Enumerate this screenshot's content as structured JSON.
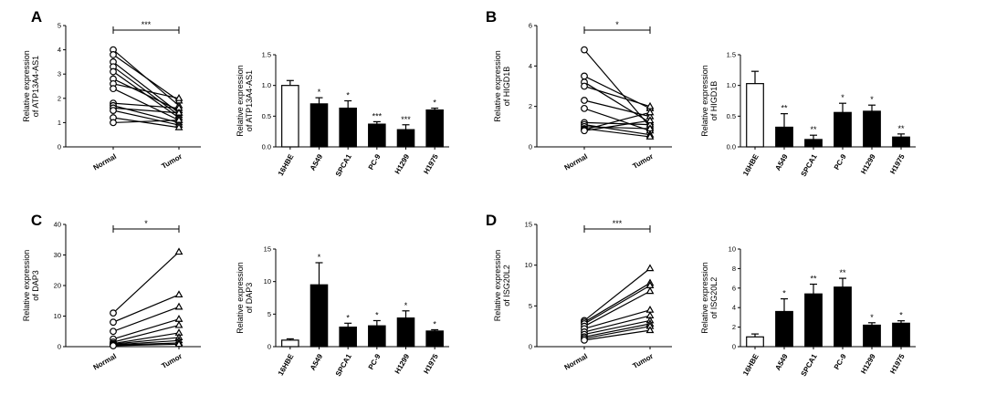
{
  "figure": {
    "panels": [
      {
        "letter": "A",
        "paired": {
          "title": "",
          "ylabel_line1": "Relative expression",
          "ylabel_line2": "of ATP13A4-AS1",
          "ylim": [
            0,
            5
          ],
          "yticks": [
            "0",
            "1",
            "2",
            "3",
            "4",
            "5"
          ],
          "groups": [
            "Normal",
            "Tumor"
          ],
          "significance": "***",
          "pairs": [
            [
              4.0,
              1.7
            ],
            [
              3.8,
              1.9
            ],
            [
              3.5,
              1.4
            ],
            [
              3.3,
              1.3
            ],
            [
              3.1,
              1.2
            ],
            [
              2.8,
              1.5
            ],
            [
              2.6,
              2.0
            ],
            [
              2.4,
              1.1
            ],
            [
              1.8,
              1.6
            ],
            [
              1.7,
              1.0
            ],
            [
              1.6,
              1.4
            ],
            [
              1.5,
              0.9
            ],
            [
              1.2,
              0.8
            ],
            [
              1.0,
              1.1
            ]
          ]
        },
        "bar": {
          "ylabel_line1": "Relative expression",
          "ylabel_line2": "of ATP13A4-AS1",
          "ylim": [
            0,
            1.5
          ],
          "yticks": [
            "0.0",
            "0.5",
            "1.0",
            "1.5"
          ],
          "categories": [
            "16HBE",
            "A549",
            "SPCA1",
            "PC-9",
            "H1299",
            "H1975"
          ],
          "values": [
            1.0,
            0.7,
            0.63,
            0.37,
            0.28,
            0.6
          ],
          "errors": [
            0.08,
            0.1,
            0.12,
            0.04,
            0.08,
            0.03
          ],
          "significance": [
            "",
            "*",
            "*",
            "***",
            "***",
            "*"
          ]
        }
      },
      {
        "letter": "B",
        "paired": {
          "ylabel_line1": "Relative expression",
          "ylabel_line2": "of HIGD1B",
          "ylim": [
            0,
            6
          ],
          "yticks": [
            "0",
            "2",
            "4",
            "6"
          ],
          "groups": [
            "Normal",
            "Tumor"
          ],
          "significance": "*",
          "pairs": [
            [
              4.8,
              1.0
            ],
            [
              3.5,
              1.9
            ],
            [
              3.2,
              1.2
            ],
            [
              3.0,
              2.0
            ],
            [
              2.3,
              1.5
            ],
            [
              1.9,
              0.8
            ],
            [
              1.2,
              1.1
            ],
            [
              1.1,
              0.6
            ],
            [
              1.0,
              0.9
            ],
            [
              0.9,
              0.5
            ],
            [
              0.85,
              1.7
            ],
            [
              0.8,
              1.3
            ]
          ]
        },
        "bar": {
          "ylabel_line1": "Relative expression",
          "ylabel_line2": "of HIGD1B",
          "ylim": [
            0,
            1.5
          ],
          "yticks": [
            "0.0",
            "0.5",
            "1.0",
            "1.5"
          ],
          "categories": [
            "16HBE",
            "A549",
            "SPCA1",
            "PC-9",
            "H1299",
            "H1975"
          ],
          "values": [
            1.03,
            0.32,
            0.12,
            0.56,
            0.58,
            0.16
          ],
          "errors": [
            0.2,
            0.22,
            0.07,
            0.15,
            0.1,
            0.05
          ],
          "significance": [
            "",
            "**",
            "**",
            "*",
            "*",
            "**"
          ]
        }
      },
      {
        "letter": "C",
        "paired": {
          "ylabel_line1": "Relative expression",
          "ylabel_line2": "of DAP3",
          "ylim": [
            0,
            40
          ],
          "yticks": [
            "0",
            "10",
            "20",
            "30",
            "40"
          ],
          "groups": [
            "Normal",
            "Tumor"
          ],
          "significance": "*",
          "pairs": [
            [
              11.0,
              31.0
            ],
            [
              8.0,
              17.0
            ],
            [
              5.0,
              13.0
            ],
            [
              2.5,
              9.0
            ],
            [
              1.5,
              7.0
            ],
            [
              1.0,
              4.5
            ],
            [
              0.8,
              3.0
            ],
            [
              0.6,
              2.0
            ],
            [
              0.5,
              1.2
            ],
            [
              0.3,
              0.8
            ]
          ]
        },
        "bar": {
          "ylabel_line1": "Relative expression",
          "ylabel_line2": "of DAP3",
          "ylim": [
            0,
            15
          ],
          "yticks": [
            "0",
            "5",
            "10",
            "15"
          ],
          "categories": [
            "16HBE",
            "A549",
            "SPCA1",
            "PC-9",
            "H1299",
            "H1975"
          ],
          "values": [
            1.0,
            9.5,
            3.0,
            3.2,
            4.4,
            2.4
          ],
          "errors": [
            0.2,
            3.4,
            0.6,
            0.8,
            1.1,
            0.2
          ],
          "significance": [
            "",
            "*",
            "*",
            "*",
            "*",
            "*"
          ]
        }
      },
      {
        "letter": "D",
        "paired": {
          "ylabel_line1": "Relative expression",
          "ylabel_line2": "of ISG20L2",
          "ylim": [
            0,
            15
          ],
          "yticks": [
            "0",
            "5",
            "10",
            "15"
          ],
          "groups": [
            "Normal",
            "Tumor"
          ],
          "significance": "***",
          "pairs": [
            [
              3.2,
              9.6
            ],
            [
              3.0,
              7.8
            ],
            [
              2.8,
              7.5
            ],
            [
              2.5,
              6.8
            ],
            [
              2.2,
              4.5
            ],
            [
              1.8,
              3.8
            ],
            [
              1.5,
              3.2
            ],
            [
              1.2,
              2.8
            ],
            [
              1.0,
              2.5
            ],
            [
              0.8,
              2.0
            ]
          ]
        },
        "bar": {
          "ylabel_line1": "Relative expression",
          "ylabel_line2": "of ISG20L2",
          "ylim": [
            0,
            10
          ],
          "yticks": [
            "0",
            "2",
            "4",
            "6",
            "8",
            "10"
          ],
          "categories": [
            "16HBE",
            "A549",
            "SPCA1",
            "PC-9",
            "H1299",
            "H1975"
          ],
          "values": [
            1.0,
            3.6,
            5.4,
            6.1,
            2.2,
            2.4
          ],
          "errors": [
            0.3,
            1.3,
            1.0,
            0.9,
            0.25,
            0.25
          ],
          "significance": [
            "",
            "*",
            "**",
            "**",
            "*",
            "*"
          ]
        }
      }
    ]
  }
}
